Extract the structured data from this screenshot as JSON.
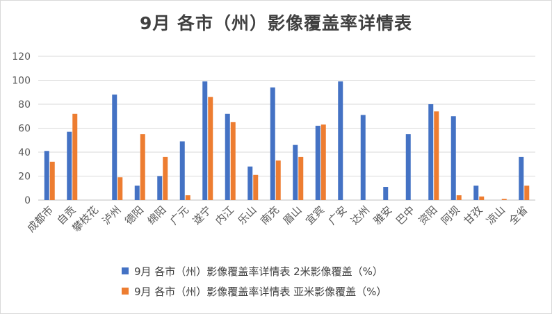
{
  "chart_data": {
    "type": "bar",
    "title": "9月 各市（州）影像覆盖率详情表",
    "xlabel": "",
    "ylabel": "",
    "ylim": [
      0,
      120
    ],
    "yticks": [
      0,
      20,
      40,
      60,
      80,
      100,
      120
    ],
    "grid": true,
    "legend_position": "bottom",
    "categories": [
      "成都市",
      "自贡",
      "攀枝花",
      "泸州",
      "德阳",
      "绵阳",
      "广元",
      "遂宁",
      "内江",
      "乐山",
      "南充",
      "眉山",
      "宜宾",
      "广安",
      "达州",
      "雅安",
      "巴中",
      "资阳",
      "阿坝",
      "甘孜",
      "凉山",
      "全省"
    ],
    "series": [
      {
        "name": "9月 各市（州）影像覆盖率详情表 2米影像覆盖（%）",
        "color": "#4472c4",
        "values": [
          41,
          57,
          0,
          88,
          12,
          20,
          49,
          99,
          72,
          28,
          94,
          46,
          62,
          99,
          71,
          11,
          55,
          80,
          70,
          12,
          0,
          36
        ]
      },
      {
        "name": "9月 各市（州）影像覆盖率详情表 亚米影像覆盖（%）",
        "color": "#ed7d31",
        "values": [
          32,
          72,
          0,
          19,
          55,
          36,
          4,
          86,
          65,
          21,
          33,
          36,
          63,
          0,
          0,
          0,
          0,
          74,
          4,
          3,
          1,
          12
        ]
      }
    ]
  }
}
